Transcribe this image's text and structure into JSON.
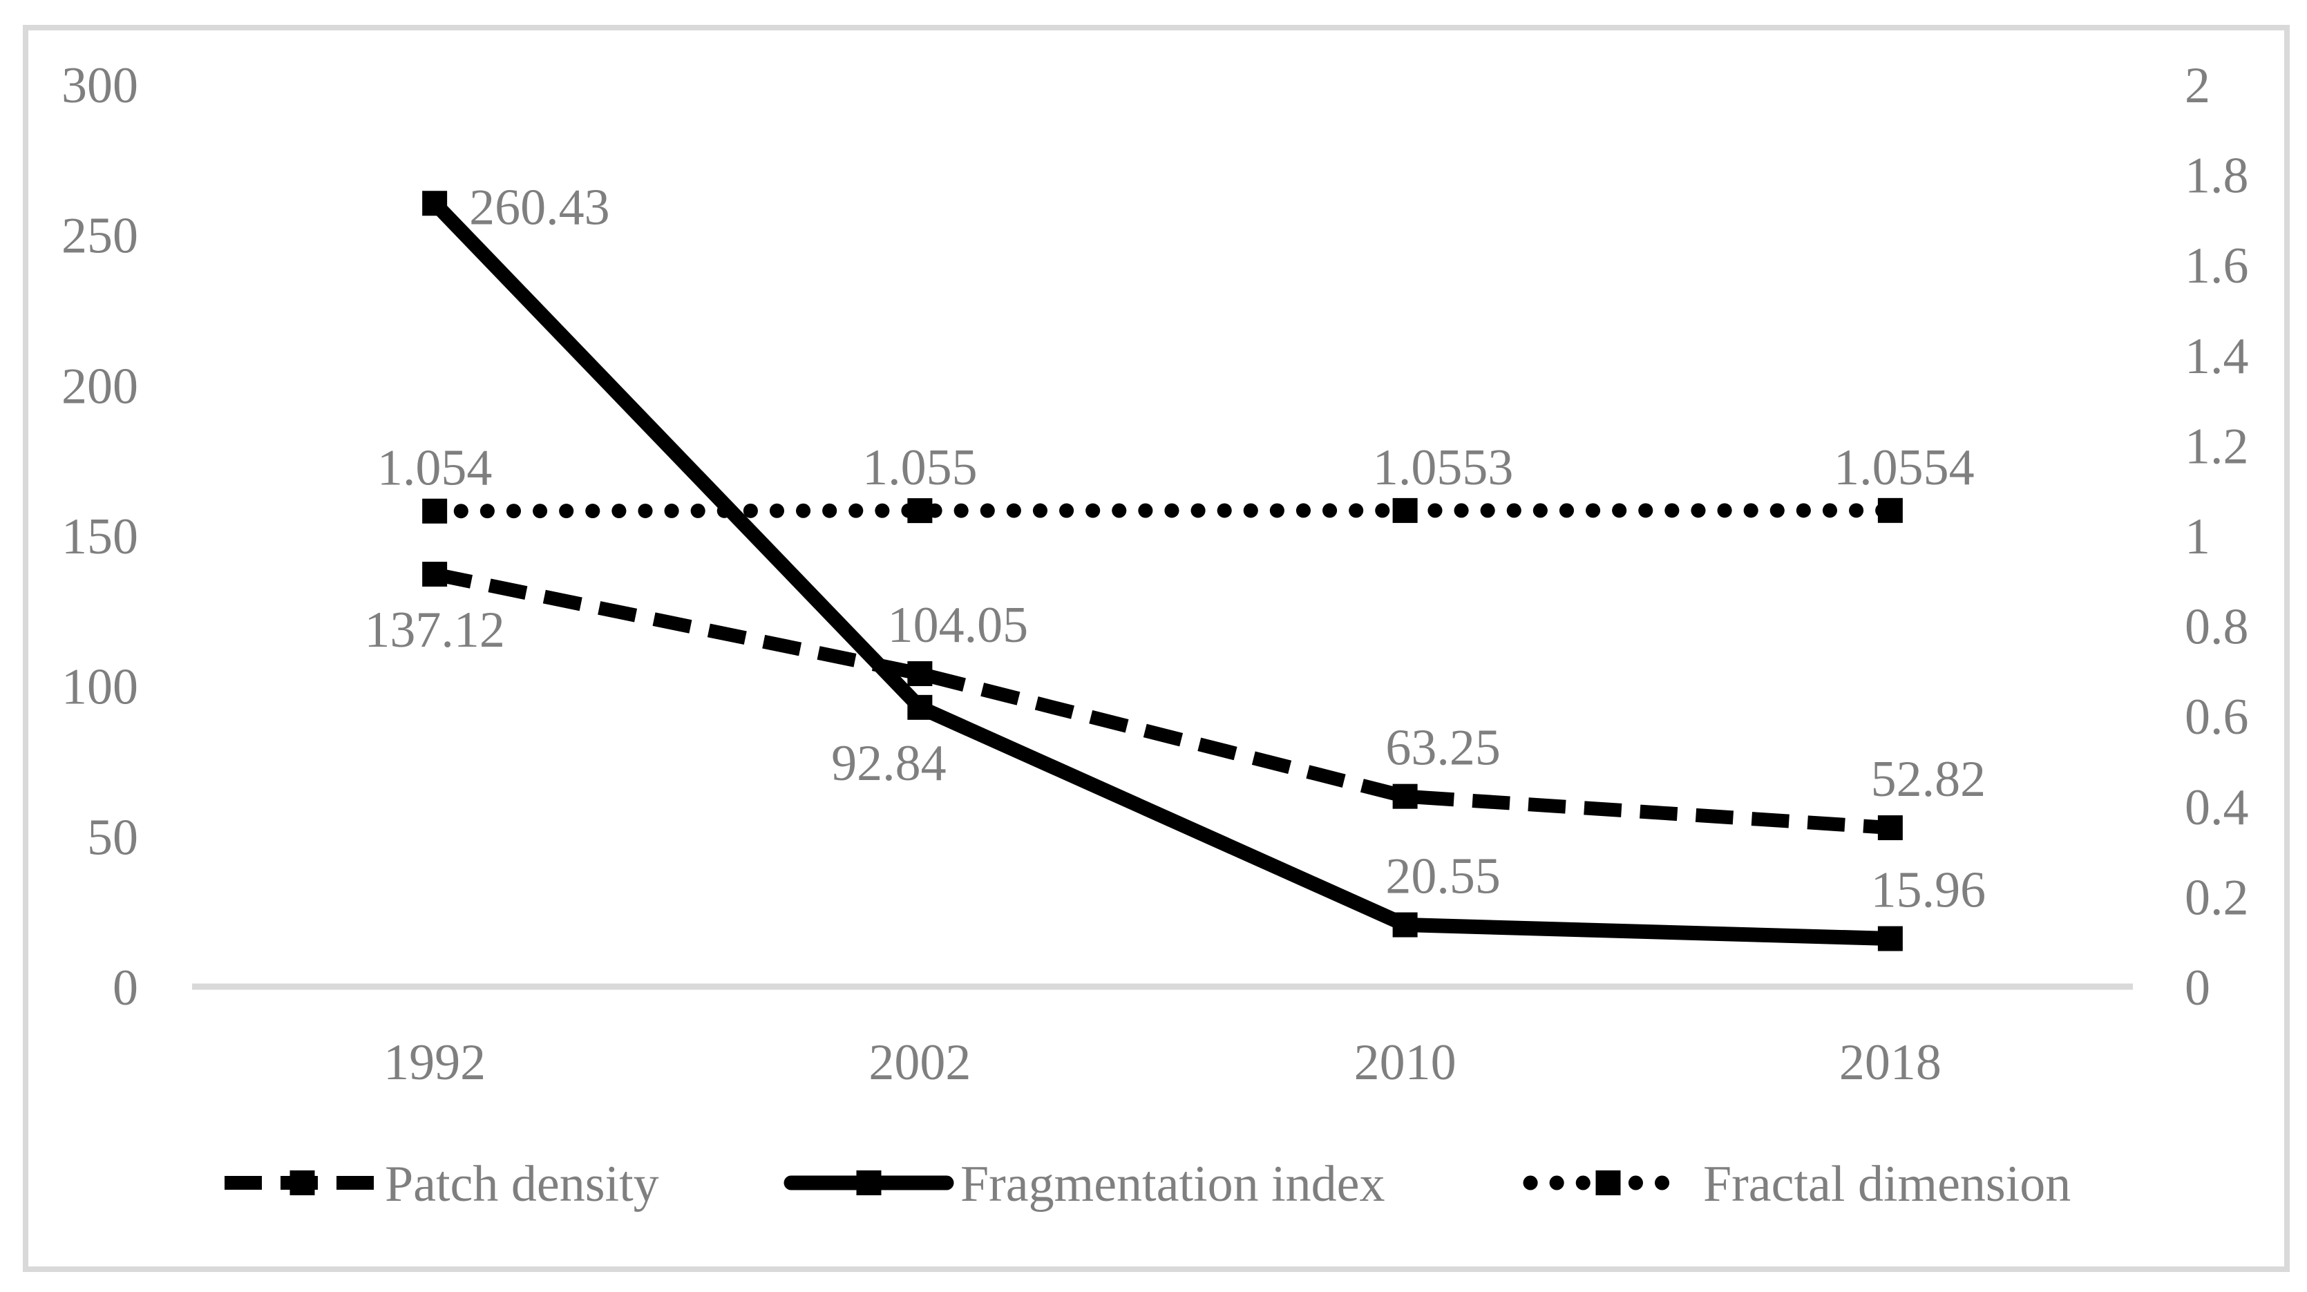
{
  "chart_data": {
    "type": "line",
    "title": "",
    "categories": [
      "1992",
      "2002",
      "2010",
      "2018"
    ],
    "series": [
      {
        "name": "Patch density",
        "axis": "left",
        "style": "dashed",
        "values": [
          137.12,
          104.05,
          63.25,
          52.82
        ],
        "labels": [
          "137.12",
          "104.05",
          "63.25",
          "52.82"
        ],
        "label_placements": [
          "below",
          "above",
          "above",
          "above"
        ],
        "label_dx": [
          0,
          55,
          55,
          55
        ]
      },
      {
        "name": "Fragmentation index",
        "axis": "left",
        "style": "solid",
        "values": [
          260.43,
          92.84,
          20.55,
          15.96
        ],
        "labels": [
          "260.43",
          "92.84",
          "20.55",
          "15.96"
        ],
        "label_placements": [
          "right",
          "below",
          "above",
          "above"
        ],
        "label_dx": [
          0,
          -45,
          55,
          55
        ]
      },
      {
        "name": "Fractal dimension",
        "axis": "right",
        "style": "dotted",
        "values": [
          1.054,
          1.055,
          1.0553,
          1.0554
        ],
        "labels": [
          "1.054",
          "1.055",
          "1.0553",
          "1.0554"
        ],
        "label_placements": [
          "above-far",
          "above-far",
          "above-far",
          "above-far"
        ],
        "label_dx": [
          0,
          0,
          55,
          20
        ]
      }
    ],
    "left_axis": {
      "min": 0,
      "max": 300,
      "tick_labels": [
        "300",
        "250",
        "200",
        "150",
        "100",
        "50",
        "0"
      ]
    },
    "right_axis": {
      "min": 0,
      "max": 2,
      "tick_labels": [
        "2",
        "1.8",
        "1.6",
        "1.4",
        "1.2",
        "1",
        "0.8",
        "0.6",
        "0.4",
        "0.2",
        "0"
      ]
    },
    "legend": {
      "position": "bottom",
      "items": [
        "Patch density",
        "Fragmentation index",
        "Fractal dimension"
      ]
    },
    "grid": false,
    "colors": {
      "line": "#000000",
      "text": "#7f7f7f",
      "axis": "#d9d9d9",
      "background": "#ffffff"
    }
  }
}
